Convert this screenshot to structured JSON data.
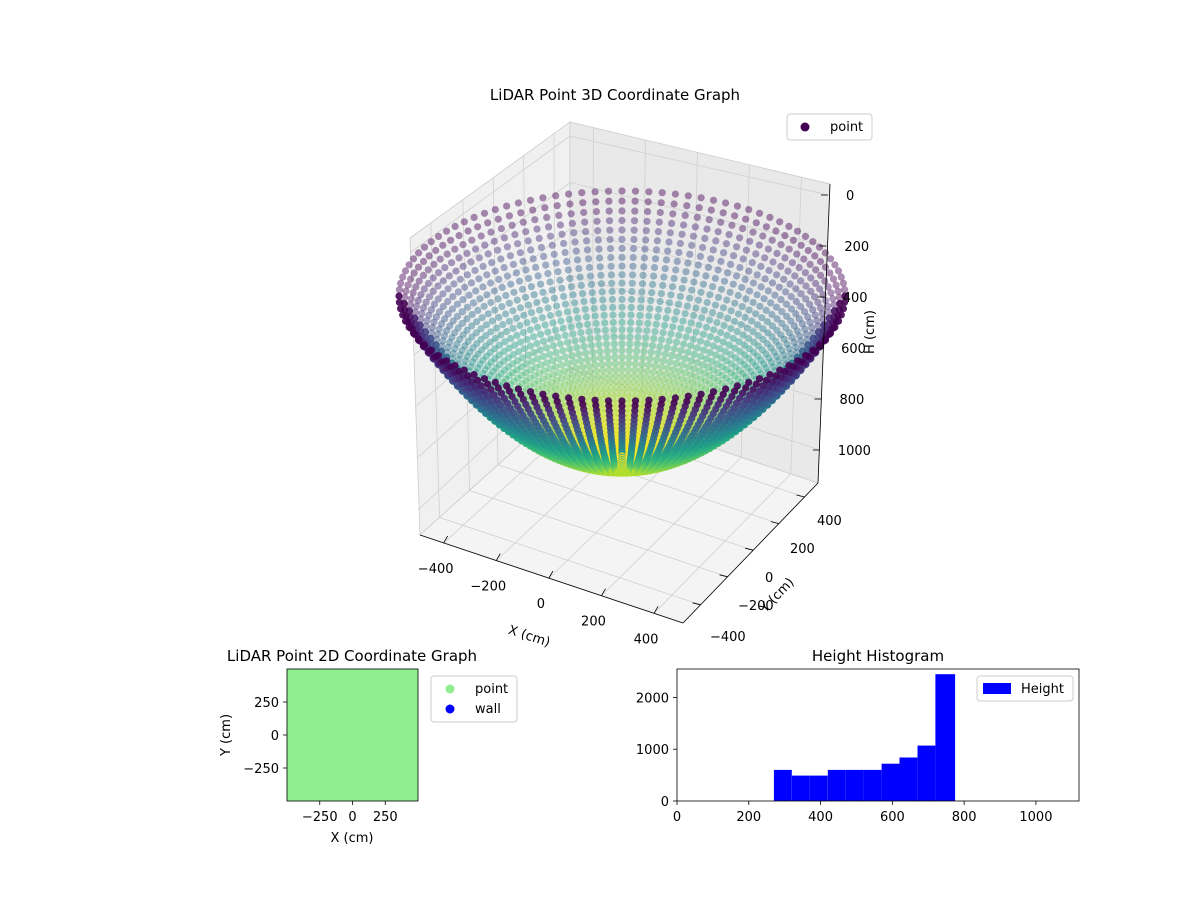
{
  "chart_data": [
    {
      "type": "scatter",
      "title": "LiDAR Point 3D Coordinate Graph",
      "xlabel": "X (cm)",
      "ylabel": "Y (cm)",
      "zlabel": "H (cm)",
      "xlim": [
        -480,
        480
      ],
      "ylim": [
        -480,
        480
      ],
      "zlim": [
        1100,
        0
      ],
      "x_ticks": [
        "−400",
        "−200",
        "0",
        "200",
        "400"
      ],
      "y_ticks": [
        "−400",
        "−200",
        "0",
        "200",
        "400"
      ],
      "z_ticks": [
        "0",
        "200",
        "400",
        "600",
        "800",
        "1000"
      ],
      "legend": {
        "entries": [
          {
            "label": "point",
            "color": "#440154"
          }
        ],
        "placement": "top-right"
      },
      "colormap": "viridis",
      "series": [
        {
          "name": "point",
          "shape": "hemispherical bowl",
          "radius": 480,
          "depth": 750
        }
      ]
    },
    {
      "type": "scatter",
      "title": "LiDAR Point 2D Coordinate Graph",
      "xlabel": "X (cm)",
      "ylabel": "Y (cm)",
      "xlim": [
        -500,
        500
      ],
      "ylim": [
        -500,
        500
      ],
      "x_ticks": [
        "−250",
        "0",
        "250"
      ],
      "y_ticks": [
        "250",
        "0",
        "−250"
      ],
      "legend": {
        "entries": [
          {
            "label": "point",
            "color": "#90ee90"
          },
          {
            "label": "wall",
            "color": "#0000ff"
          }
        ],
        "placement": "outside-right"
      }
    },
    {
      "type": "bar",
      "title": "Height Histogram",
      "xlim": [
        0,
        1120
      ],
      "ylim": [
        0,
        2550
      ],
      "x_ticks": [
        "0",
        "200",
        "400",
        "600",
        "800",
        "1000"
      ],
      "y_ticks": [
        "0",
        "1000",
        "2000"
      ],
      "color": "#0000ff",
      "legend": {
        "entries": [
          {
            "label": "Height",
            "color": "#0000ff"
          }
        ],
        "placement": "top-right"
      },
      "bins": [
        {
          "x0": 270,
          "x1": 320,
          "count": 600
        },
        {
          "x0": 320,
          "x1": 370,
          "count": 490
        },
        {
          "x0": 370,
          "x1": 420,
          "count": 490
        },
        {
          "x0": 420,
          "x1": 470,
          "count": 600
        },
        {
          "x0": 470,
          "x1": 520,
          "count": 600
        },
        {
          "x0": 520,
          "x1": 570,
          "count": 600
        },
        {
          "x0": 570,
          "x1": 620,
          "count": 720
        },
        {
          "x0": 620,
          "x1": 670,
          "count": 840
        },
        {
          "x0": 670,
          "x1": 720,
          "count": 1070
        },
        {
          "x0": 720,
          "x1": 775,
          "count": 2450
        }
      ]
    }
  ]
}
